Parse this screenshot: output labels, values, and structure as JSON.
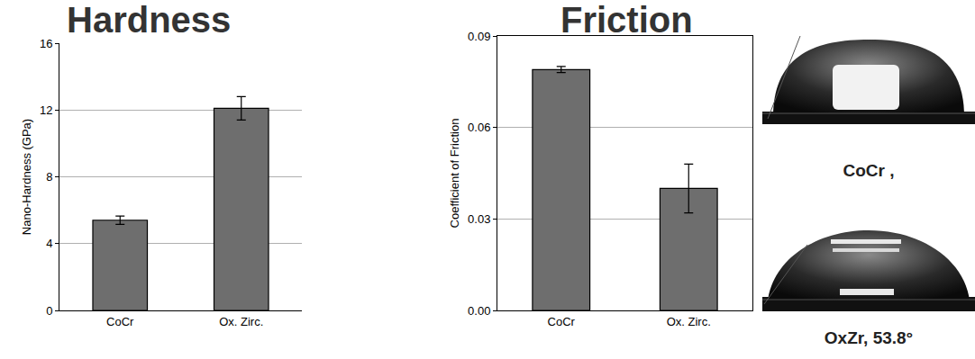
{
  "chart_data": [
    {
      "type": "bar",
      "title": "Hardness",
      "y_label": "Nano-Hardness (GPa)",
      "categories": [
        "CoCr",
        "Ox. Zirc."
      ],
      "values": [
        5.4,
        12.1
      ],
      "error": [
        0.25,
        0.7
      ],
      "color": "#6e6e6e",
      "ylim": [
        0,
        16
      ],
      "yticks": [
        0,
        4,
        8,
        12,
        16
      ],
      "grid": true
    },
    {
      "type": "bar",
      "title": "Friction",
      "y_label": "Coefficient of Friction",
      "categories": [
        "CoCr",
        "Ox. Zirc."
      ],
      "values": [
        0.079,
        0.04
      ],
      "error": [
        0.001,
        0.008
      ],
      "color": "#6e6e6e",
      "ylim": [
        0,
        0.09
      ],
      "yticks": [
        {
          "value": 0,
          "label": "0.00"
        },
        {
          "value": 0.03,
          "label": "0.03"
        },
        {
          "value": 0.06,
          "label": "0.06"
        },
        {
          "value": 0.09,
          "label": "0.09"
        }
      ],
      "grid": true
    }
  ],
  "photos": [
    {
      "label": "CoCr ,"
    },
    {
      "label": "OxZr, 53.8°"
    }
  ]
}
